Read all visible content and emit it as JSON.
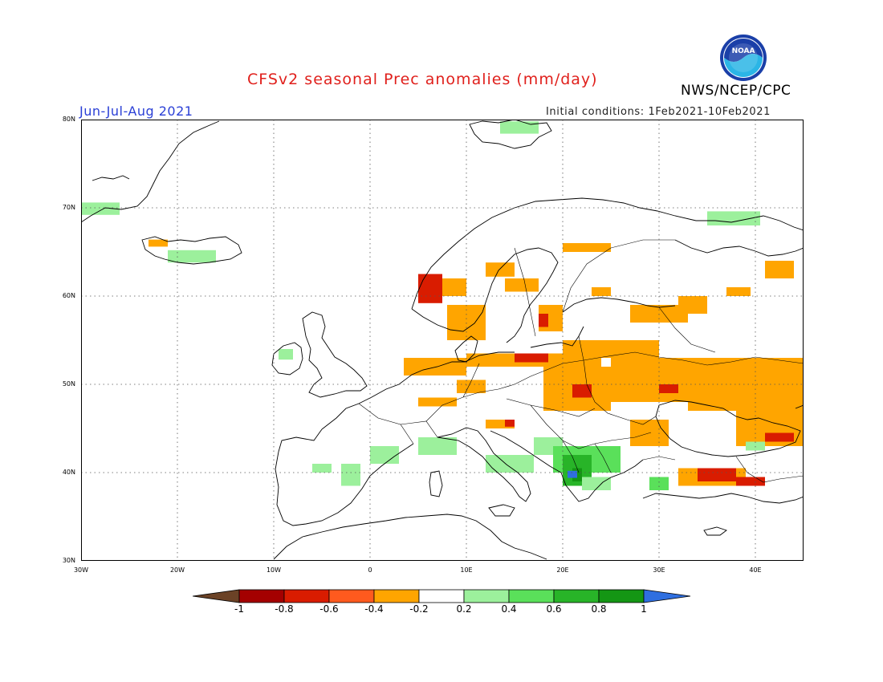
{
  "header": {
    "title": "CFSv2 seasonal Prec anomalies (mm/day)",
    "agency": "NWS/NCEP/CPC",
    "season": "Jun-Jul-Aug 2021",
    "init_label": "Initial conditions:",
    "init_range": "1Feb2021-10Feb2021",
    "logo_text": "NOAA"
  },
  "axes": {
    "lat_labels": [
      "80N",
      "70N",
      "60N",
      "50N",
      "40N",
      "30N"
    ],
    "lat_values": [
      80,
      70,
      60,
      50,
      40,
      30
    ],
    "lon_labels": [
      "30W",
      "20W",
      "10W",
      "0",
      "10E",
      "20E",
      "30E",
      "40E"
    ],
    "lon_values": [
      -30,
      -20,
      -10,
      0,
      10,
      20,
      30,
      40
    ],
    "lon_range": [
      -30,
      45
    ],
    "lat_range": [
      30,
      80
    ],
    "grid": "dotted"
  },
  "legend": {
    "labels": [
      "-1",
      "-0.8",
      "-0.6",
      "-0.4",
      "-0.2",
      "0.2",
      "0.4",
      "0.6",
      "0.8",
      "1"
    ],
    "colors": [
      "#6b4226",
      "#a40000",
      "#d91c00",
      "#ff5a1e",
      "#ffa500",
      "#ffffff",
      "#9cf09c",
      "#5ae05a",
      "#28b428",
      "#149614",
      "#2f6fe0"
    ]
  },
  "anomaly_regions": [
    {
      "color": "#9cf09c",
      "lon": [
        -30,
        -26
      ],
      "lat": [
        69.2,
        70.6
      ]
    },
    {
      "color": "#9cf09c",
      "lon": [
        -21,
        -16
      ],
      "lat": [
        63.8,
        65.2
      ]
    },
    {
      "color": "#ffa500",
      "lon": [
        -23,
        -21
      ],
      "lat": [
        65.6,
        66.4
      ]
    },
    {
      "color": "#9cf09c",
      "lon": [
        -9.5,
        -8
      ],
      "lat": [
        52.8,
        54
      ]
    },
    {
      "color": "#9cf09c",
      "lon": [
        13.5,
        17.5
      ],
      "lat": [
        78.4,
        79.8
      ]
    },
    {
      "color": "#9cf09c",
      "lon": [
        35,
        40.5
      ],
      "lat": [
        68,
        69.6
      ]
    },
    {
      "color": "#ffa500",
      "lon": [
        12,
        15
      ],
      "lat": [
        62.2,
        63.8
      ]
    },
    {
      "color": "#d91c00",
      "lon": [
        5,
        7.5
      ],
      "lat": [
        59.2,
        62.5
      ]
    },
    {
      "color": "#ffa500",
      "lon": [
        7.5,
        10
      ],
      "lat": [
        60,
        62
      ]
    },
    {
      "color": "#ffa500",
      "lon": [
        20,
        25
      ],
      "lat": [
        65,
        66
      ]
    },
    {
      "color": "#ffa500",
      "lon": [
        14,
        17.5
      ],
      "lat": [
        60.5,
        62
      ]
    },
    {
      "color": "#ffa500",
      "lon": [
        17.5,
        20
      ],
      "lat": [
        56,
        59
      ]
    },
    {
      "color": "#d91c00",
      "lon": [
        17.5,
        18.5
      ],
      "lat": [
        56.5,
        58
      ]
    },
    {
      "color": "#ffa500",
      "lon": [
        8,
        12
      ],
      "lat": [
        55,
        59
      ]
    },
    {
      "color": "#ffa500",
      "lon": [
        23,
        25
      ],
      "lat": [
        60,
        61
      ]
    },
    {
      "color": "#ffa500",
      "lon": [
        27,
        33
      ],
      "lat": [
        57,
        59
      ]
    },
    {
      "color": "#ffa500",
      "lon": [
        32,
        35
      ],
      "lat": [
        58,
        60
      ]
    },
    {
      "color": "#ffa500",
      "lon": [
        41,
        44
      ],
      "lat": [
        62,
        64
      ]
    },
    {
      "color": "#ffa500",
      "lon": [
        37,
        39.5
      ],
      "lat": [
        60,
        61
      ]
    },
    {
      "color": "#ffa500",
      "lon": [
        3.5,
        10
      ],
      "lat": [
        51,
        53
      ]
    },
    {
      "color": "#ffa500",
      "lon": [
        10,
        24
      ],
      "lat": [
        52,
        53.5
      ]
    },
    {
      "color": "#d91c00",
      "lon": [
        15,
        18.5
      ],
      "lat": [
        52.5,
        53.5
      ]
    },
    {
      "color": "#ffa500",
      "lon": [
        18,
        25
      ],
      "lat": [
        47,
        52
      ]
    },
    {
      "color": "#d91c00",
      "lon": [
        21,
        23
      ],
      "lat": [
        48.5,
        50
      ]
    },
    {
      "color": "#ffa500",
      "lon": [
        20,
        30
      ],
      "lat": [
        53,
        55
      ]
    },
    {
      "color": "#ffa500",
      "lon": [
        25,
        33
      ],
      "lat": [
        48,
        53
      ]
    },
    {
      "color": "#d91c00",
      "lon": [
        30,
        32
      ],
      "lat": [
        49,
        50
      ]
    },
    {
      "color": "#ffa500",
      "lon": [
        33,
        45
      ],
      "lat": [
        47,
        53
      ]
    },
    {
      "color": "#ffa500",
      "lon": [
        38,
        45
      ],
      "lat": [
        43,
        47
      ]
    },
    {
      "color": "#d91c00",
      "lon": [
        41,
        44
      ],
      "lat": [
        43.5,
        44.5
      ]
    },
    {
      "color": "#ffa500",
      "lon": [
        27,
        31
      ],
      "lat": [
        43,
        46
      ]
    },
    {
      "color": "#ffa500",
      "lon": [
        9,
        12
      ],
      "lat": [
        49,
        50.5
      ]
    },
    {
      "color": "#ffa500",
      "lon": [
        5,
        9
      ],
      "lat": [
        47.5,
        48.5
      ]
    },
    {
      "color": "#ffa500",
      "lon": [
        12,
        15
      ],
      "lat": [
        45,
        46
      ]
    },
    {
      "color": "#d91c00",
      "lon": [
        14,
        15
      ],
      "lat": [
        45.2,
        46
      ]
    },
    {
      "color": "#ffa500",
      "lon": [
        32,
        39
      ],
      "lat": [
        38.5,
        40.5
      ]
    },
    {
      "color": "#d91c00",
      "lon": [
        34,
        38
      ],
      "lat": [
        39,
        40.5
      ]
    },
    {
      "color": "#d91c00",
      "lon": [
        38,
        41
      ],
      "lat": [
        38.5,
        39.5
      ]
    },
    {
      "color": "#9cf09c",
      "lon": [
        -6,
        -4
      ],
      "lat": [
        40,
        41
      ]
    },
    {
      "color": "#9cf09c",
      "lon": [
        -3,
        -1
      ],
      "lat": [
        38.5,
        41
      ]
    },
    {
      "color": "#9cf09c",
      "lon": [
        0,
        3
      ],
      "lat": [
        41,
        43
      ]
    },
    {
      "color": "#9cf09c",
      "lon": [
        5,
        9
      ],
      "lat": [
        42,
        44
      ]
    },
    {
      "color": "#9cf09c",
      "lon": [
        12,
        17
      ],
      "lat": [
        40,
        42
      ]
    },
    {
      "color": "#9cf09c",
      "lon": [
        17,
        20
      ],
      "lat": [
        42,
        44
      ]
    },
    {
      "color": "#5ae05a",
      "lon": [
        19,
        26
      ],
      "lat": [
        40,
        43
      ]
    },
    {
      "color": "#28b428",
      "lon": [
        20,
        23
      ],
      "lat": [
        38.5,
        42
      ]
    },
    {
      "color": "#149614",
      "lon": [
        21,
        22
      ],
      "lat": [
        39,
        40.5
      ]
    },
    {
      "color": "#2f6fe0",
      "lon": [
        20.5,
        21.5
      ],
      "lat": [
        39.4,
        40.2
      ]
    },
    {
      "color": "#9cf09c",
      "lon": [
        22,
        25
      ],
      "lat": [
        38,
        39.5
      ]
    },
    {
      "color": "#5ae05a",
      "lon": [
        29,
        31
      ],
      "lat": [
        38,
        39.5
      ]
    },
    {
      "color": "#9cf09c",
      "lon": [
        39,
        41
      ],
      "lat": [
        42.5,
        43.5
      ]
    }
  ]
}
